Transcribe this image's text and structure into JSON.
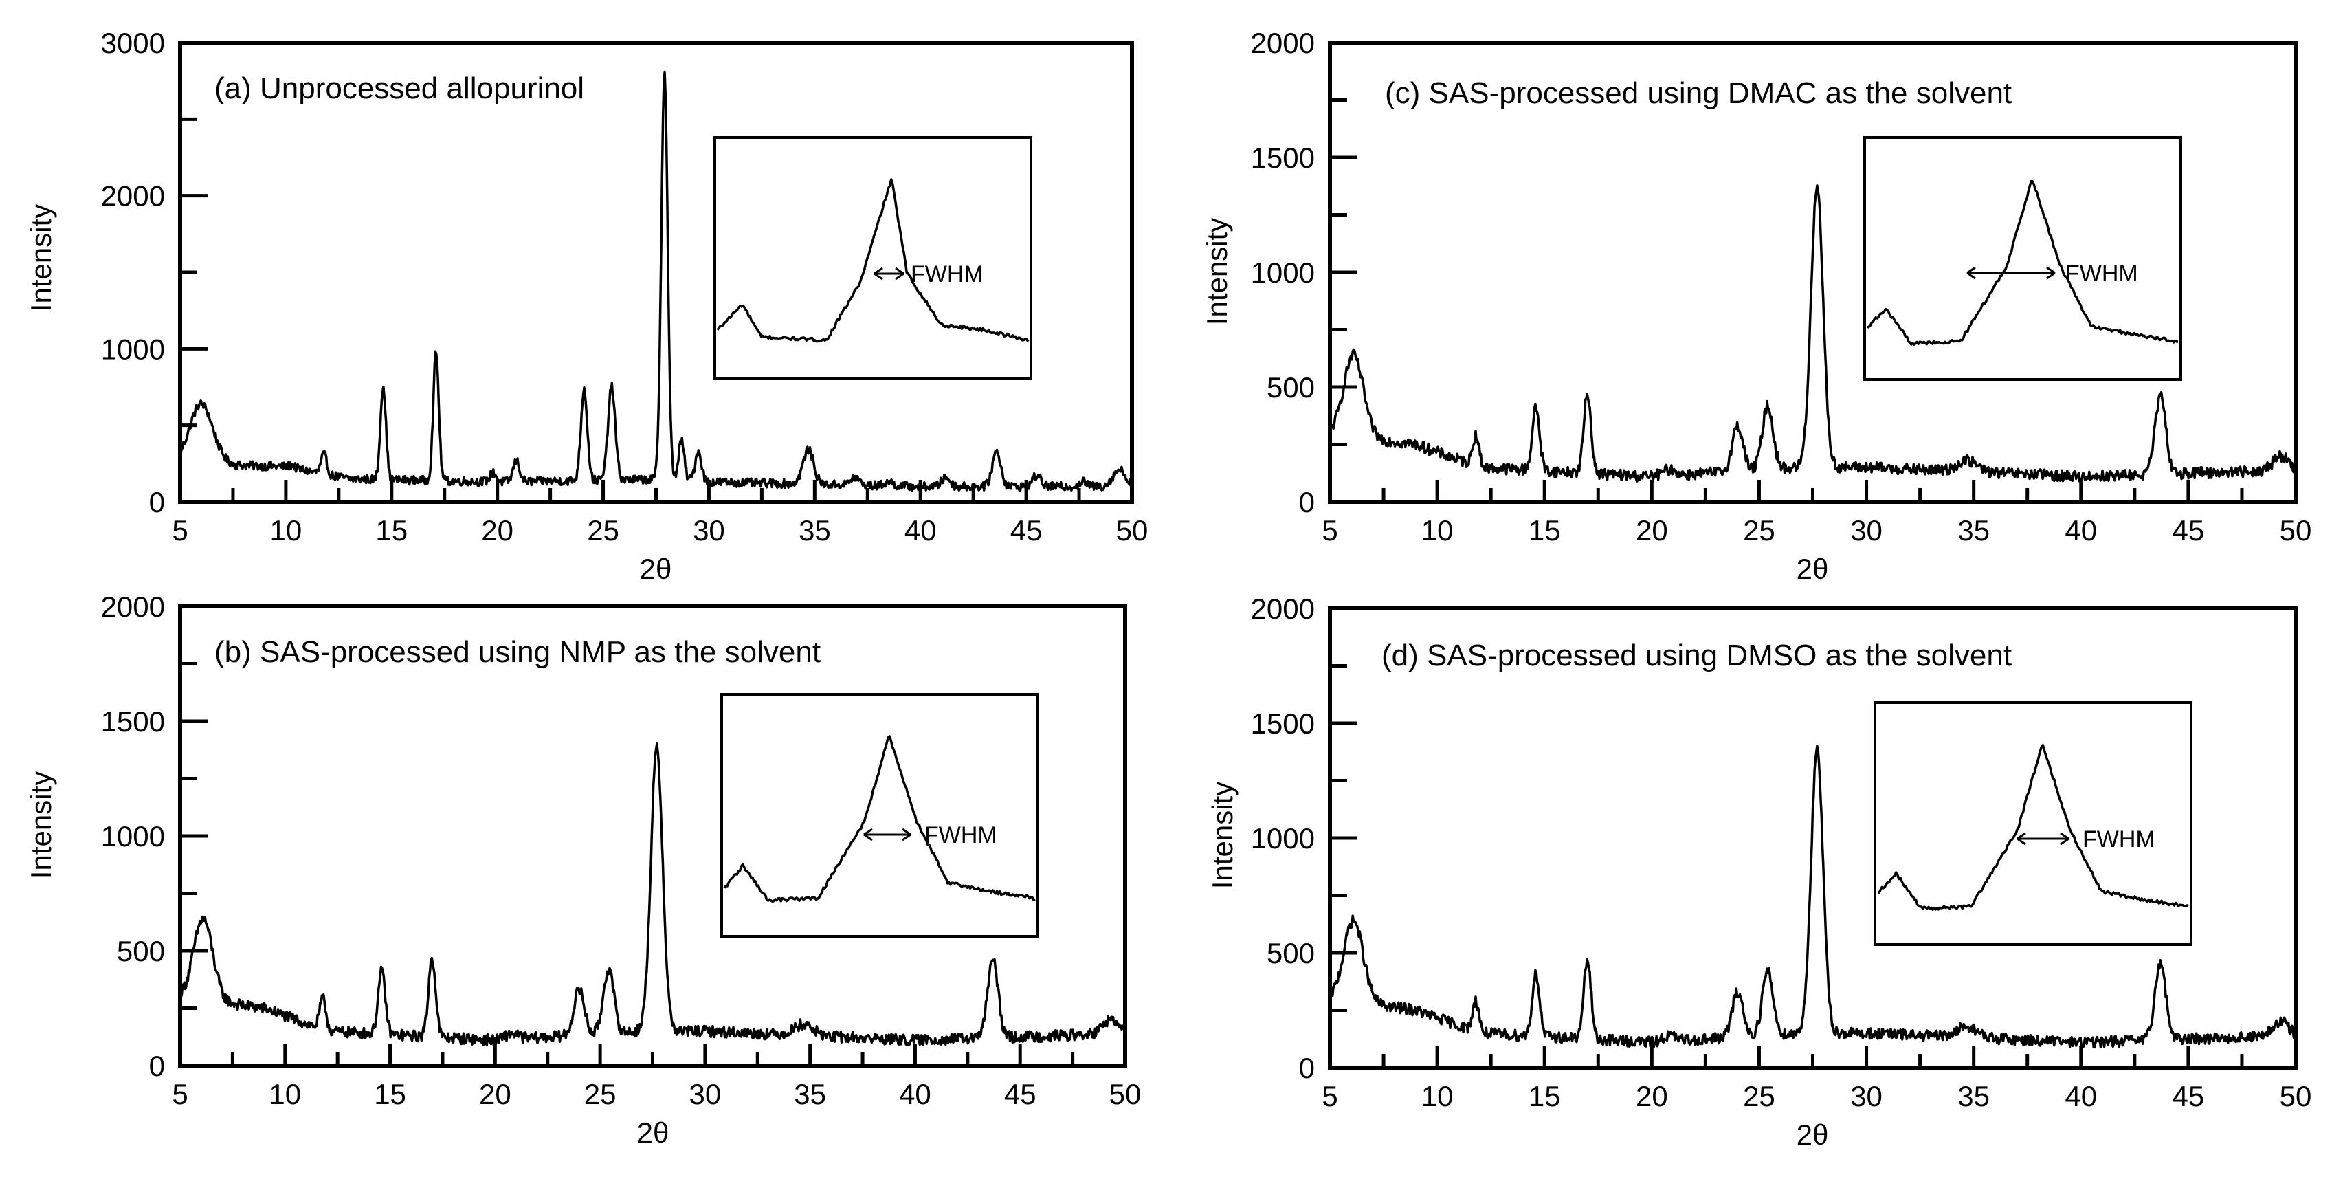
{
  "figure": {
    "panels": [
      {
        "id": "a",
        "title": "(a) Unprocessed allopurinol",
        "ylabel": "Intensity",
        "xlabel": "2θ",
        "xlim": [
          5,
          50
        ],
        "ylim": [
          0,
          3000
        ],
        "xticks": [
          5,
          10,
          15,
          20,
          25,
          30,
          35,
          40,
          45,
          50
        ],
        "yticks": [
          0,
          1000,
          2000,
          3000
        ],
        "inset_label": "FWHM"
      },
      {
        "id": "b",
        "title": "(b) SAS-processed using NMP as the solvent",
        "ylabel": "Intensity",
        "xlabel": "2θ",
        "xlim": [
          5,
          50
        ],
        "ylim": [
          0,
          2000
        ],
        "xticks": [
          5,
          10,
          15,
          20,
          25,
          30,
          35,
          40,
          45,
          50
        ],
        "yticks": [
          0,
          500,
          1000,
          1500,
          2000
        ],
        "inset_label": "FWHM"
      },
      {
        "id": "c",
        "title": "(c) SAS-processed using DMAC as the solvent",
        "ylabel": "Intensity",
        "xlabel": "2θ",
        "xlim": [
          5,
          50
        ],
        "ylim": [
          0,
          2000
        ],
        "xticks": [
          5,
          10,
          15,
          20,
          25,
          30,
          35,
          40,
          45,
          50
        ],
        "yticks": [
          0,
          500,
          1000,
          1500,
          2000
        ],
        "inset_label": "FWHM"
      },
      {
        "id": "d",
        "title": "(d) SAS-processed using DMSO as the solvent",
        "ylabel": "Intensity",
        "xlabel": "2θ",
        "xlim": [
          5,
          50
        ],
        "ylim": [
          0,
          2000
        ],
        "xticks": [
          5,
          10,
          15,
          20,
          25,
          30,
          35,
          40,
          45,
          50
        ],
        "yticks": [
          0,
          500,
          1000,
          1500,
          2000
        ],
        "inset_label": "FWHM"
      }
    ]
  },
  "chart_data": [
    {
      "type": "line",
      "title": "(a) Unprocessed allopurinol",
      "xlabel": "2θ",
      "ylabel": "Intensity",
      "xlim": [
        5,
        50
      ],
      "ylim": [
        0,
        3000
      ],
      "baseline": [
        [
          5,
          250
        ],
        [
          10,
          230
        ],
        [
          13,
          150
        ],
        [
          20,
          130
        ],
        [
          28.5,
          150
        ],
        [
          30,
          130
        ],
        [
          40,
          100
        ],
        [
          50,
          100
        ]
      ],
      "peaks": [
        {
          "x": 6.0,
          "y": 640,
          "w": 0.55
        },
        {
          "x": 10.3,
          "y": 240,
          "w": 0.12
        },
        {
          "x": 11.8,
          "y": 310,
          "w": 0.13
        },
        {
          "x": 14.6,
          "y": 760,
          "w": 0.13
        },
        {
          "x": 17.1,
          "y": 980,
          "w": 0.13
        },
        {
          "x": 19.8,
          "y": 190,
          "w": 0.15
        },
        {
          "x": 20.9,
          "y": 270,
          "w": 0.15
        },
        {
          "x": 24.1,
          "y": 740,
          "w": 0.15
        },
        {
          "x": 25.4,
          "y": 750,
          "w": 0.17
        },
        {
          "x": 27.9,
          "y": 2800,
          "w": 0.15
        },
        {
          "x": 28.7,
          "y": 400,
          "w": 0.13
        },
        {
          "x": 29.5,
          "y": 330,
          "w": 0.15
        },
        {
          "x": 34.7,
          "y": 340,
          "w": 0.25
        },
        {
          "x": 36.9,
          "y": 160,
          "w": 0.2
        },
        {
          "x": 38.5,
          "y": 130,
          "w": 0.2
        },
        {
          "x": 41.2,
          "y": 160,
          "w": 0.2
        },
        {
          "x": 43.6,
          "y": 330,
          "w": 0.2
        },
        {
          "x": 45.5,
          "y": 170,
          "w": 0.2
        },
        {
          "x": 47.7,
          "y": 130,
          "w": 0.2
        },
        {
          "x": 49.4,
          "y": 210,
          "w": 0.3
        }
      ],
      "noise": 28,
      "inset": {
        "label": "FWHM",
        "shape": [
          [
            0.0,
            0.12
          ],
          [
            0.08,
            0.27
          ],
          [
            0.14,
            0.08
          ],
          [
            0.35,
            0.06
          ],
          [
            0.46,
            0.4
          ],
          [
            0.56,
            1.0
          ],
          [
            0.61,
            0.45
          ],
          [
            0.72,
            0.15
          ],
          [
            0.86,
            0.12
          ],
          [
            1.0,
            0.06
          ]
        ]
      }
    },
    {
      "type": "line",
      "title": "(b) SAS-processed using NMP as the solvent",
      "xlabel": "2θ",
      "ylabel": "Intensity",
      "xlim": [
        5,
        50
      ],
      "ylim": [
        0,
        2000
      ],
      "baseline": [
        [
          5,
          300
        ],
        [
          9,
          250
        ],
        [
          12,
          150
        ],
        [
          20,
          110
        ],
        [
          27,
          150
        ],
        [
          30,
          150
        ],
        [
          40,
          110
        ],
        [
          50,
          140
        ]
      ],
      "peaks": [
        {
          "x": 6.1,
          "y": 640,
          "w": 0.45
        },
        {
          "x": 11.8,
          "y": 290,
          "w": 0.15
        },
        {
          "x": 14.6,
          "y": 410,
          "w": 0.17
        },
        {
          "x": 17.0,
          "y": 470,
          "w": 0.17
        },
        {
          "x": 20.8,
          "y": 140,
          "w": 0.3
        },
        {
          "x": 24.0,
          "y": 330,
          "w": 0.25
        },
        {
          "x": 25.4,
          "y": 420,
          "w": 0.25
        },
        {
          "x": 27.7,
          "y": 1380,
          "w": 0.28
        },
        {
          "x": 34.7,
          "y": 180,
          "w": 0.45
        },
        {
          "x": 43.7,
          "y": 460,
          "w": 0.25
        },
        {
          "x": 49.3,
          "y": 200,
          "w": 0.35
        }
      ],
      "noise": 24,
      "inset": {
        "label": "FWHM",
        "shape": [
          [
            0.0,
            0.12
          ],
          [
            0.06,
            0.25
          ],
          [
            0.14,
            0.05
          ],
          [
            0.3,
            0.06
          ],
          [
            0.45,
            0.5
          ],
          [
            0.53,
            1.0
          ],
          [
            0.62,
            0.5
          ],
          [
            0.72,
            0.15
          ],
          [
            0.86,
            0.1
          ],
          [
            1.0,
            0.06
          ]
        ]
      }
    },
    {
      "type": "line",
      "title": "(c) SAS-processed using DMAC as the solvent",
      "xlabel": "2θ",
      "ylabel": "Intensity",
      "xlim": [
        5,
        50
      ],
      "ylim": [
        0,
        2000
      ],
      "baseline": [
        [
          5,
          300
        ],
        [
          9,
          250
        ],
        [
          12,
          150
        ],
        [
          20,
          110
        ],
        [
          27,
          150
        ],
        [
          30,
          150
        ],
        [
          40,
          110
        ],
        [
          50,
          140
        ]
      ],
      "peaks": [
        {
          "x": 6.1,
          "y": 640,
          "w": 0.45
        },
        {
          "x": 11.8,
          "y": 290,
          "w": 0.15
        },
        {
          "x": 14.6,
          "y": 410,
          "w": 0.17
        },
        {
          "x": 17.0,
          "y": 470,
          "w": 0.17
        },
        {
          "x": 20.8,
          "y": 140,
          "w": 0.3
        },
        {
          "x": 24.0,
          "y": 330,
          "w": 0.25
        },
        {
          "x": 25.4,
          "y": 420,
          "w": 0.25
        },
        {
          "x": 27.7,
          "y": 1380,
          "w": 0.28
        },
        {
          "x": 34.7,
          "y": 180,
          "w": 0.45
        },
        {
          "x": 43.7,
          "y": 460,
          "w": 0.25
        },
        {
          "x": 49.3,
          "y": 200,
          "w": 0.35
        }
      ],
      "noise": 24,
      "inset": {
        "label": "FWHM",
        "shape": [
          [
            0.0,
            0.14
          ],
          [
            0.06,
            0.25
          ],
          [
            0.14,
            0.05
          ],
          [
            0.3,
            0.06
          ],
          [
            0.45,
            0.5
          ],
          [
            0.53,
            1.0
          ],
          [
            0.62,
            0.5
          ],
          [
            0.72,
            0.15
          ],
          [
            0.86,
            0.1
          ],
          [
            1.0,
            0.06
          ]
        ]
      }
    },
    {
      "type": "line",
      "title": "(d) SAS-processed using DMSO as the solvent",
      "xlabel": "2θ",
      "ylabel": "Intensity",
      "xlim": [
        5,
        50
      ],
      "ylim": [
        0,
        2000
      ],
      "baseline": [
        [
          5,
          300
        ],
        [
          9,
          250
        ],
        [
          12,
          150
        ],
        [
          20,
          110
        ],
        [
          27,
          150
        ],
        [
          30,
          150
        ],
        [
          40,
          110
        ],
        [
          50,
          140
        ]
      ],
      "peaks": [
        {
          "x": 6.1,
          "y": 640,
          "w": 0.45
        },
        {
          "x": 11.8,
          "y": 290,
          "w": 0.15
        },
        {
          "x": 14.6,
          "y": 410,
          "w": 0.17
        },
        {
          "x": 17.0,
          "y": 470,
          "w": 0.17
        },
        {
          "x": 20.8,
          "y": 140,
          "w": 0.3
        },
        {
          "x": 24.0,
          "y": 330,
          "w": 0.25
        },
        {
          "x": 25.4,
          "y": 420,
          "w": 0.25
        },
        {
          "x": 27.7,
          "y": 1380,
          "w": 0.28
        },
        {
          "x": 34.7,
          "y": 180,
          "w": 0.45
        },
        {
          "x": 43.7,
          "y": 460,
          "w": 0.25
        },
        {
          "x": 49.3,
          "y": 200,
          "w": 0.35
        }
      ],
      "noise": 24,
      "inset": {
        "label": "FWHM",
        "shape": [
          [
            0.0,
            0.14
          ],
          [
            0.06,
            0.25
          ],
          [
            0.14,
            0.05
          ],
          [
            0.3,
            0.06
          ],
          [
            0.45,
            0.5
          ],
          [
            0.53,
            1.0
          ],
          [
            0.62,
            0.5
          ],
          [
            0.72,
            0.15
          ],
          [
            0.86,
            0.1
          ],
          [
            1.0,
            0.06
          ]
        ]
      }
    }
  ]
}
